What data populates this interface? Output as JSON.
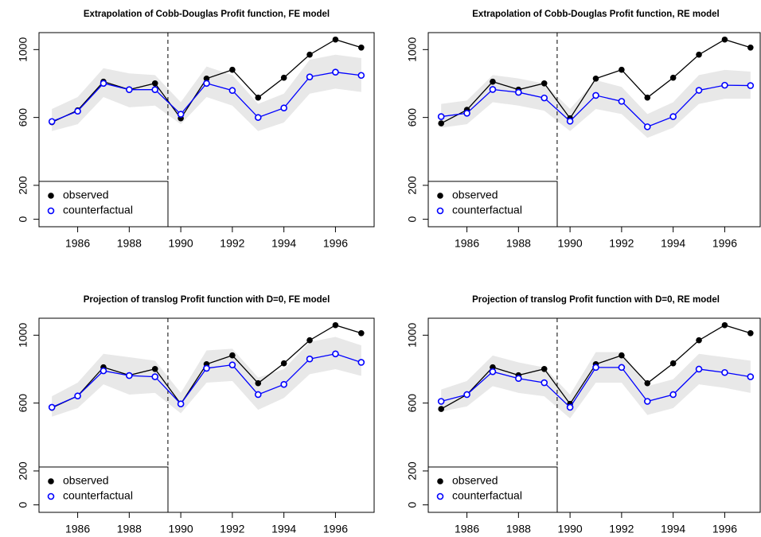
{
  "chart_data": [
    {
      "type": "line",
      "title": "Extrapolation of Cobb-Douglas Profit function, FE model",
      "x": [
        1985,
        1986,
        1987,
        1988,
        1989,
        1990,
        1991,
        1992,
        1993,
        1994,
        1995,
        1996,
        1997
      ],
      "series": [
        {
          "name": "observed",
          "color": "#000000",
          "marker": "filled",
          "values": [
            572,
            642,
            811,
            764,
            801,
            595,
            829,
            881,
            717,
            834,
            970,
            1059,
            1012
          ]
        },
        {
          "name": "counterfactual",
          "color": "#0000ff",
          "marker": "open",
          "values": [
            576,
            637,
            801,
            764,
            764,
            619,
            801,
            759,
            600,
            656,
            839,
            867,
            848
          ]
        }
      ],
      "band": {
        "color": "#e8e8e8",
        "lower": [
          520,
          560,
          720,
          660,
          670,
          560,
          720,
          670,
          520,
          570,
          740,
          770,
          750
        ],
        "upper": [
          650,
          720,
          890,
          860,
          850,
          690,
          900,
          850,
          680,
          740,
          940,
          970,
          950
        ]
      },
      "vline": 1989.5,
      "xlim": [
        1984.5,
        1997.5
      ],
      "ylim": [
        -44,
        1100
      ],
      "xticks": [
        1986,
        1988,
        1990,
        1992,
        1994,
        1996
      ],
      "yticks": [
        0,
        200,
        600,
        1000
      ],
      "legend": "bottomleft"
    },
    {
      "type": "line",
      "title": "Extrapolation of Cobb-Douglas Profit function, RE model",
      "x": [
        1985,
        1986,
        1987,
        1988,
        1989,
        1990,
        1991,
        1992,
        1993,
        1994,
        1995,
        1996,
        1997
      ],
      "series": [
        {
          "name": "observed",
          "color": "#000000",
          "marker": "filled",
          "values": [
            565,
            645,
            811,
            764,
            801,
            595,
            829,
            881,
            717,
            834,
            970,
            1059,
            1012
          ]
        },
        {
          "name": "counterfactual",
          "color": "#0000ff",
          "marker": "open",
          "values": [
            605,
            625,
            765,
            748,
            715,
            578,
            730,
            695,
            545,
            605,
            760,
            790,
            788
          ]
        }
      ],
      "band": {
        "color": "#e8e8e8",
        "lower": [
          540,
          560,
          690,
          670,
          640,
          520,
          650,
          620,
          480,
          540,
          680,
          710,
          710
        ],
        "upper": [
          680,
          700,
          850,
          830,
          800,
          650,
          820,
          780,
          620,
          690,
          850,
          880,
          870
        ]
      },
      "vline": 1989.5,
      "xlim": [
        1984.5,
        1997.5
      ],
      "ylim": [
        -44,
        1100
      ],
      "xticks": [
        1986,
        1988,
        1990,
        1992,
        1994,
        1996
      ],
      "yticks": [
        0,
        200,
        600,
        1000
      ],
      "legend": "bottomleft"
    },
    {
      "type": "line",
      "title": "Projection of translog Profit function with D=0, FE model",
      "x": [
        1985,
        1986,
        1987,
        1988,
        1989,
        1990,
        1991,
        1992,
        1993,
        1994,
        1995,
        1996,
        1997
      ],
      "series": [
        {
          "name": "observed",
          "color": "#000000",
          "marker": "filled",
          "values": [
            572,
            642,
            811,
            764,
            801,
            595,
            829,
            881,
            717,
            834,
            970,
            1059,
            1012
          ]
        },
        {
          "name": "counterfactual",
          "color": "#0000ff",
          "marker": "open",
          "values": [
            575,
            642,
            790,
            762,
            755,
            595,
            805,
            825,
            650,
            710,
            860,
            890,
            840
          ]
        }
      ],
      "band": {
        "color": "#e8e8e8",
        "lower": [
          520,
          570,
          710,
          650,
          660,
          540,
          720,
          730,
          560,
          630,
          770,
          800,
          760
        ],
        "upper": [
          640,
          720,
          890,
          870,
          850,
          660,
          910,
          920,
          750,
          800,
          960,
          990,
          940
        ]
      },
      "vline": 1989.5,
      "xlim": [
        1984.5,
        1997.5
      ],
      "ylim": [
        -44,
        1100
      ],
      "xticks": [
        1986,
        1988,
        1990,
        1992,
        1994,
        1996
      ],
      "yticks": [
        0,
        200,
        600,
        1000
      ],
      "legend": "bottomleft"
    },
    {
      "type": "line",
      "title": "Projection of translog Profit function with D=0, RE model",
      "x": [
        1985,
        1986,
        1987,
        1988,
        1989,
        1990,
        1991,
        1992,
        1993,
        1994,
        1995,
        1996,
        1997
      ],
      "series": [
        {
          "name": "observed",
          "color": "#000000",
          "marker": "filled",
          "values": [
            565,
            650,
            811,
            764,
            801,
            595,
            829,
            881,
            717,
            834,
            970,
            1059,
            1012
          ]
        },
        {
          "name": "counterfactual",
          "color": "#0000ff",
          "marker": "open",
          "values": [
            610,
            650,
            785,
            745,
            720,
            575,
            810,
            810,
            610,
            650,
            800,
            780,
            755
          ]
        }
      ],
      "band": {
        "color": "#e8e8e8",
        "lower": [
          550,
          580,
          700,
          660,
          640,
          510,
          720,
          720,
          530,
          570,
          710,
          690,
          660
        ],
        "upper": [
          680,
          730,
          880,
          840,
          810,
          650,
          900,
          900,
          700,
          740,
          890,
          870,
          850
        ]
      },
      "vline": 1989.5,
      "xlim": [
        1984.5,
        1997.5
      ],
      "ylim": [
        -44,
        1100
      ],
      "xticks": [
        1986,
        1988,
        1990,
        1992,
        1994,
        1996
      ],
      "yticks": [
        0,
        200,
        600,
        1000
      ],
      "legend": "bottomleft"
    }
  ]
}
